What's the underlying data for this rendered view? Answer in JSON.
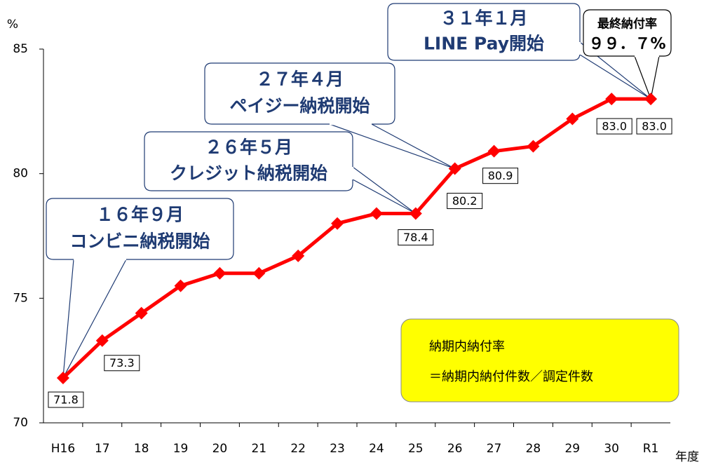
{
  "chart_data": {
    "type": "line",
    "y_label": "%",
    "x_label": "年度",
    "categories": [
      "H16",
      "17",
      "18",
      "19",
      "20",
      "21",
      "22",
      "23",
      "24",
      "25",
      "26",
      "27",
      "28",
      "29",
      "30",
      "R1"
    ],
    "series": [
      {
        "name": "納期内納付率",
        "color": "#ff0000",
        "values": [
          71.8,
          73.3,
          74.4,
          75.5,
          76.0,
          76.0,
          76.7,
          78.0,
          78.4,
          78.4,
          80.2,
          80.9,
          81.1,
          82.2,
          83.0,
          83.0
        ],
        "value_labels": [
          "71.8",
          "73.3",
          null,
          null,
          null,
          null,
          null,
          null,
          null,
          "78.4",
          "80.2",
          "80.9",
          null,
          null,
          "83.0",
          "83.0"
        ]
      }
    ],
    "ylim": [
      70,
      85
    ],
    "yticks": [
      70,
      75,
      80,
      85
    ],
    "annotations": [
      {
        "lines": [
          "１６年９月",
          "コンビニ納税開始"
        ]
      },
      {
        "lines": [
          "２６年５月",
          "クレジット納税開始"
        ]
      },
      {
        "lines": [
          "２７年４月",
          "ペイジー納税開始"
        ]
      },
      {
        "lines": [
          "３１年１月",
          "LINE Pay開始"
        ]
      },
      {
        "lines": [
          "最終納付率",
          "９９．７%"
        ]
      }
    ],
    "definition": [
      "納期内納付率",
      "＝納期内納付件数／調定件数"
    ]
  }
}
